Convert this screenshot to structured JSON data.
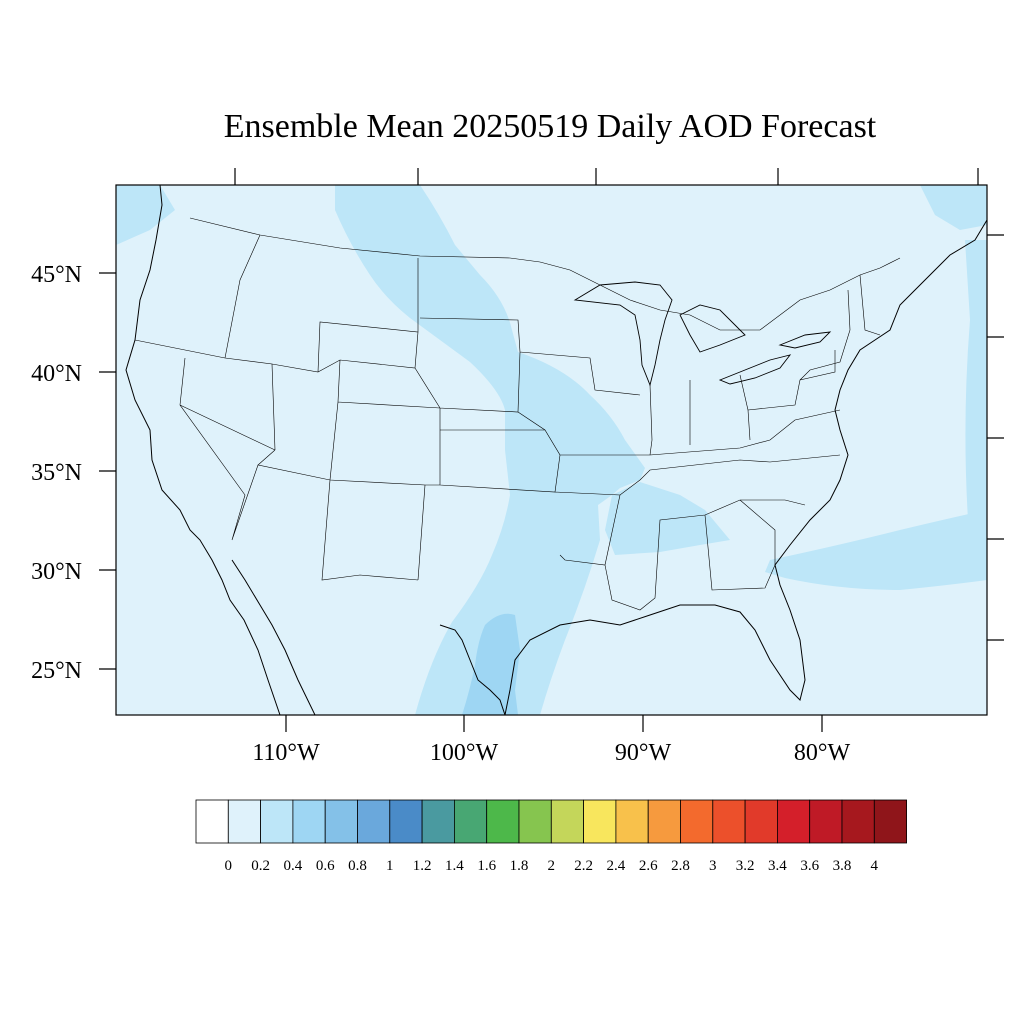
{
  "title": "Ensemble Mean 20250519 Daily AOD Forecast",
  "lat_labels": [
    "45°N",
    "40°N",
    "35°N",
    "30°N",
    "25°N"
  ],
  "lon_labels": [
    "110°W",
    "100°W",
    "90°W",
    "80°W"
  ],
  "colorbar": {
    "labels": [
      "0",
      "0.2",
      "0.4",
      "0.6",
      "0.8",
      "1",
      "1.2",
      "1.4",
      "1.6",
      "1.8",
      "2",
      "2.2",
      "2.4",
      "2.6",
      "2.8",
      "3",
      "3.2",
      "3.4",
      "3.6",
      "3.8",
      "4"
    ],
    "colors": [
      "#ffffff",
      "#dff2fb",
      "#bde6f8",
      "#9ed6f3",
      "#84c1e8",
      "#6aa8dc",
      "#4a8bc8",
      "#4a9aa0",
      "#48a773",
      "#4db84a",
      "#86c54f",
      "#c4d65a",
      "#f8e65d",
      "#f8c14b",
      "#f69a3e",
      "#f36a2d",
      "#ec502b",
      "#e13a2a",
      "#d41f2a",
      "#bf1a26",
      "#a6181e",
      "#8f151a"
    ]
  },
  "map": {
    "background_color": "#dff2fb",
    "plume_color": "#bde6f8",
    "core_color": "#9ed6f3"
  }
}
